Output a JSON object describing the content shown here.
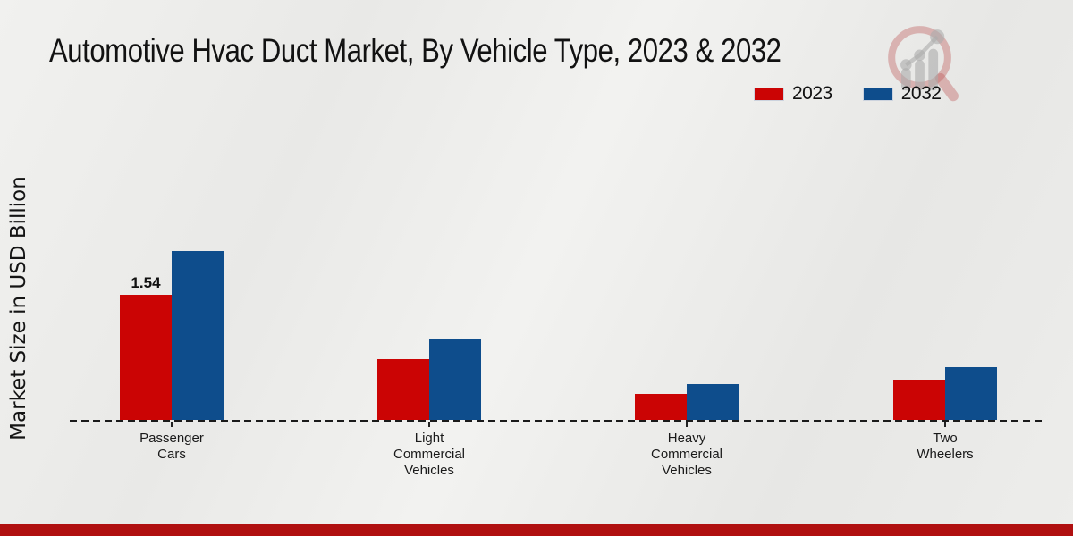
{
  "title": "Automotive Hvac Duct Market, By Vehicle Type, 2023 & 2032",
  "watermark_icon": "magnifier-growth-chart-logo",
  "legend": [
    {
      "label": "2023",
      "color": "#cb0404"
    },
    {
      "label": "2032",
      "color": "#0e4d8c"
    }
  ],
  "colors": {
    "series_2023": "#cb0404",
    "series_2032": "#0e4d8c",
    "bottom_strip": "#b01010",
    "axis_line": "#1a1a1a",
    "background": "#ececea"
  },
  "chart_data": {
    "type": "bar",
    "title": "Automotive Hvac Duct Market, By Vehicle Type, 2023 & 2032",
    "xlabel": "",
    "ylabel": "Market Size in USD Billion",
    "categories": [
      "Passenger Cars",
      "Light Commercial Vehicles",
      "Heavy Commercial Vehicles",
      "Two Wheelers"
    ],
    "category_lines": [
      [
        "Passenger",
        "Cars"
      ],
      [
        "Light",
        "Commercial",
        "Vehicles"
      ],
      [
        "Heavy",
        "Commercial",
        "Vehicles"
      ],
      [
        "Two",
        "Wheelers"
      ]
    ],
    "series": [
      {
        "name": "2023",
        "color": "#cb0404",
        "values": [
          1.54,
          0.75,
          0.32,
          0.49
        ]
      },
      {
        "name": "2032",
        "color": "#0e4d8c",
        "values": [
          2.08,
          1.0,
          0.44,
          0.65
        ]
      }
    ],
    "data_labels": [
      {
        "series_index": 0,
        "category_index": 0,
        "text": "1.54"
      }
    ],
    "ylim": [
      0,
      2.2
    ],
    "grid": false,
    "axis_style": "dashed-baseline-only",
    "legend_position": "top-right"
  }
}
